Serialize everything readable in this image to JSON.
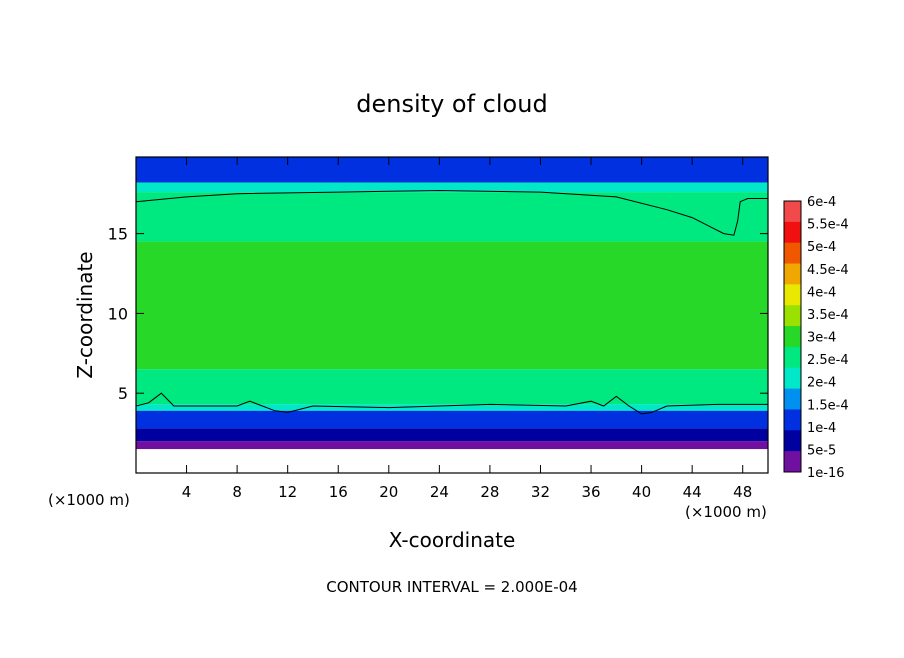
{
  "chart_data": {
    "type": "heatmap",
    "title": "density of cloud",
    "xlabel": "X-coordinate",
    "ylabel": "Z-coordinate",
    "x_unit_left": "(×1000 m)",
    "x_unit_right": "(×1000 m)",
    "footer": "CONTOUR INTERVAL = 2.000E-04",
    "xlim": [
      0,
      50
    ],
    "ylim": [
      0,
      19.8
    ],
    "x_ticks": [
      4,
      8,
      12,
      16,
      20,
      24,
      28,
      32,
      36,
      40,
      44,
      48
    ],
    "y_ticks": [
      5,
      10,
      15
    ],
    "colorbar": {
      "levels": [
        {
          "label": "6e-4",
          "value": 0.0006,
          "color": "#f4a0a0"
        },
        {
          "label": "5.5e-4",
          "value": 0.00055,
          "color": "#f24a4a"
        },
        {
          "label": "5e-4",
          "value": 0.0005,
          "color": "#f01010"
        },
        {
          "label": "4.5e-4",
          "value": 0.00045,
          "color": "#f05800"
        },
        {
          "label": "4e-4",
          "value": 0.0004,
          "color": "#f0a800"
        },
        {
          "label": "3.5e-4",
          "value": 0.00035,
          "color": "#e8e800"
        },
        {
          "label": "3e-4",
          "value": 0.0003,
          "color": "#9ae000"
        },
        {
          "label": "2.5e-4",
          "value": 0.00025,
          "color": "#28d828"
        },
        {
          "label": "2e-4",
          "value": 0.0002,
          "color": "#00e880"
        },
        {
          "label": "1.5e-4",
          "value": 0.00015,
          "color": "#00e8c8"
        },
        {
          "label": "1e-4",
          "value": 0.0001,
          "color": "#0090f0"
        },
        {
          "label": "5e-5",
          "value": 5e-05,
          "color": "#0030e0"
        },
        {
          "label": "1e-16",
          "value": 1e-16,
          "color": "#0000a0"
        }
      ],
      "bottom_color": "#7010a0"
    },
    "bands": [
      {
        "z_bottom": 18.2,
        "z_top": 19.8,
        "value": 9e-05
      },
      {
        "z_bottom": 17.6,
        "z_top": 18.2,
        "value": 0.00017
      },
      {
        "z_bottom": 14.5,
        "z_top": 17.6,
        "value": 0.00021
      },
      {
        "z_bottom": 6.5,
        "z_top": 14.5,
        "value": 0.00028
      },
      {
        "z_bottom": 4.3,
        "z_top": 6.5,
        "value": 0.00022
      },
      {
        "z_bottom": 3.9,
        "z_top": 4.3,
        "value": 0.00016
      },
      {
        "z_bottom": 2.8,
        "z_top": 3.9,
        "value": 9e-05
      },
      {
        "z_bottom": 2.0,
        "z_top": 2.8,
        "value": 4e-05
      },
      {
        "z_bottom": 1.5,
        "z_top": 2.0,
        "value": 0.0
      }
    ],
    "contour_upper": [
      [
        0,
        17.0
      ],
      [
        4,
        17.3
      ],
      [
        8,
        17.5
      ],
      [
        16,
        17.6
      ],
      [
        24,
        17.7
      ],
      [
        32,
        17.6
      ],
      [
        38,
        17.3
      ],
      [
        42,
        16.5
      ],
      [
        44,
        16.0
      ],
      [
        45.5,
        15.4
      ],
      [
        46.5,
        15.0
      ],
      [
        47.3,
        14.9
      ],
      [
        47.6,
        15.8
      ],
      [
        47.8,
        17.0
      ],
      [
        48.4,
        17.2
      ],
      [
        50,
        17.2
      ]
    ],
    "contour_lower": [
      [
        0,
        4.2
      ],
      [
        1,
        4.4
      ],
      [
        2,
        5.0
      ],
      [
        3,
        4.2
      ],
      [
        8,
        4.2
      ],
      [
        9,
        4.5
      ],
      [
        10,
        4.2
      ],
      [
        11,
        3.9
      ],
      [
        12,
        3.8
      ],
      [
        14,
        4.2
      ],
      [
        20,
        4.1
      ],
      [
        28,
        4.3
      ],
      [
        34,
        4.2
      ],
      [
        36,
        4.5
      ],
      [
        37,
        4.2
      ],
      [
        38,
        4.8
      ],
      [
        39,
        4.2
      ],
      [
        40,
        3.7
      ],
      [
        40.8,
        3.8
      ],
      [
        42,
        4.2
      ],
      [
        46,
        4.3
      ],
      [
        50,
        4.3
      ]
    ]
  }
}
